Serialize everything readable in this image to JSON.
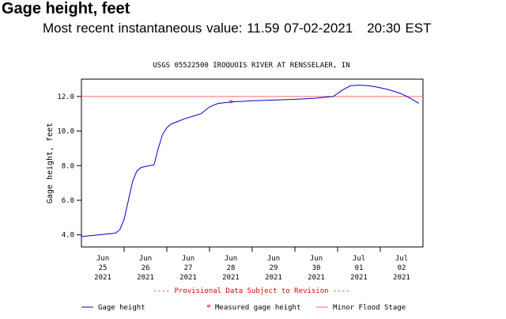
{
  "header": {
    "title": "Gage height, feet",
    "recent_label": "Most recent instantaneous value:",
    "recent_value": "11.59",
    "recent_date": "07-02-2021",
    "recent_time": "20:30 EST"
  },
  "chart_data": {
    "type": "line",
    "title": "USGS 05522500 IROQUOIS RIVER AT RENSSELAER, IN",
    "ylabel": "Gage height, feet",
    "ylim": [
      3.3,
      13.0
    ],
    "xlim": [
      0,
      8.0
    ],
    "yticks": [
      "4.0",
      "6.0",
      "8.0",
      "10.0",
      "12.0"
    ],
    "ytick_values": [
      4.0,
      6.0,
      8.0,
      10.0,
      12.0
    ],
    "xticks": [
      {
        "pos": 0.5,
        "lines": [
          "Jun",
          "25",
          "2021"
        ]
      },
      {
        "pos": 1.5,
        "lines": [
          "Jun",
          "26",
          "2021"
        ]
      },
      {
        "pos": 2.5,
        "lines": [
          "Jun",
          "27",
          "2021"
        ]
      },
      {
        "pos": 3.5,
        "lines": [
          "Jun",
          "28",
          "2021"
        ]
      },
      {
        "pos": 4.5,
        "lines": [
          "Jun",
          "29",
          "2021"
        ]
      },
      {
        "pos": 5.5,
        "lines": [
          "Jun",
          "30",
          "2021"
        ]
      },
      {
        "pos": 6.5,
        "lines": [
          "Jul",
          "01",
          "2021"
        ]
      },
      {
        "pos": 7.5,
        "lines": [
          "Jul",
          "02",
          "2021"
        ]
      }
    ],
    "grid": false,
    "notice": "---- Provisional Data Subject to Revision ----",
    "series": [
      {
        "name": "Gage height",
        "color": "#0000cc",
        "x": [
          0.0,
          0.2,
          0.4,
          0.6,
          0.8,
          0.9,
          1.0,
          1.1,
          1.2,
          1.3,
          1.4,
          1.5,
          1.6,
          1.7,
          1.8,
          1.9,
          2.0,
          2.1,
          2.2,
          2.3,
          2.4,
          2.6,
          2.8,
          3.0,
          3.2,
          3.4,
          3.6,
          3.8,
          4.0,
          4.3,
          4.6,
          4.9,
          5.2,
          5.5,
          5.7,
          5.9,
          6.1,
          6.3,
          6.5,
          6.7,
          6.9,
          7.1,
          7.3,
          7.5,
          7.7,
          7.9
        ],
        "values": [
          3.9,
          3.95,
          4.0,
          4.05,
          4.1,
          4.3,
          4.9,
          6.0,
          7.1,
          7.7,
          7.9,
          7.95,
          8.0,
          8.05,
          9.0,
          9.8,
          10.2,
          10.4,
          10.5,
          10.6,
          10.7,
          10.85,
          11.0,
          11.4,
          11.6,
          11.65,
          11.7,
          11.72,
          11.75,
          11.78,
          11.8,
          11.83,
          11.86,
          11.9,
          11.95,
          12.0,
          12.35,
          12.62,
          12.65,
          12.63,
          12.55,
          12.45,
          12.32,
          12.15,
          11.9,
          11.6
        ]
      }
    ],
    "measured": [
      {
        "name": "Measured gage height",
        "x": 3.5,
        "value": 11.65,
        "color": "#dd0000"
      }
    ],
    "reference": [
      {
        "name": "Minor Flood Stage",
        "value": 12.0,
        "color": "#ff6666"
      }
    ],
    "legend": {
      "position": "bottom",
      "items": [
        "Gage height",
        "Measured gage height",
        "Minor Flood Stage"
      ]
    }
  }
}
